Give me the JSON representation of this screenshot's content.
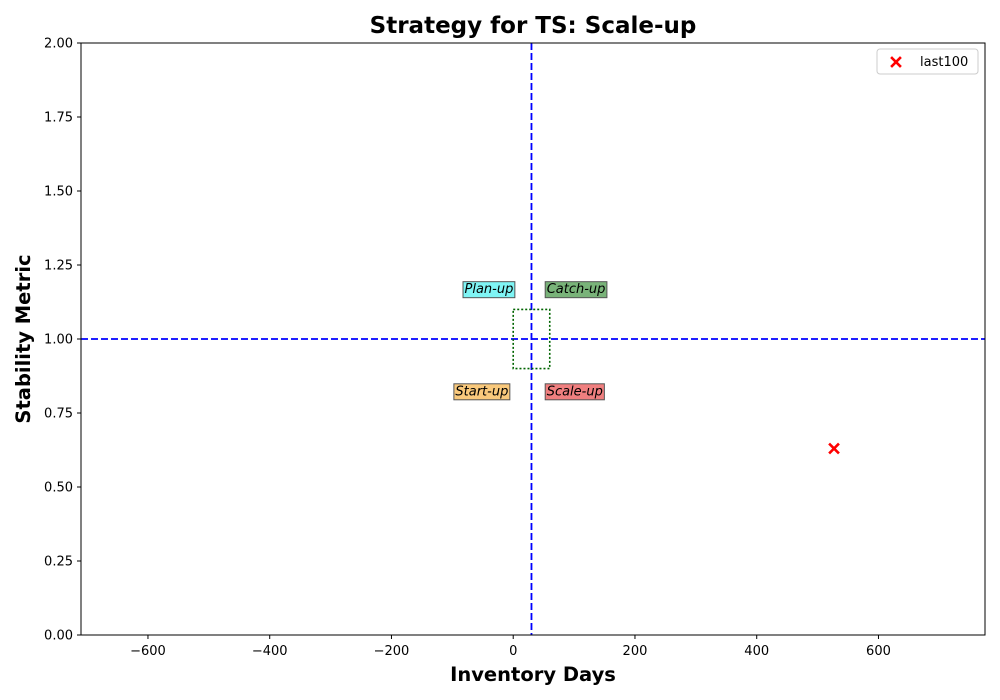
{
  "chart_data": {
    "type": "scatter",
    "title": "Strategy for TS: Scale-up",
    "xlabel": "Inventory Days",
    "ylabel": "Stability Metric",
    "xlim": [
      -710,
      775
    ],
    "ylim": [
      0,
      2
    ],
    "x_ticks": [
      -600,
      -400,
      -200,
      0,
      200,
      400,
      600
    ],
    "x_tick_labels": [
      "−600",
      "−400",
      "−200",
      "0",
      "200",
      "400",
      "600"
    ],
    "y_ticks": [
      0,
      0.25,
      0.5,
      0.75,
      1.0,
      1.25,
      1.5,
      1.75,
      2.0
    ],
    "y_tick_labels": [
      "0.00",
      "0.25",
      "0.50",
      "0.75",
      "1.00",
      "1.25",
      "1.50",
      "1.75",
      "2.00"
    ],
    "grid": false,
    "reference_lines": {
      "vertical_x": 30,
      "horizontal_y": 1.0,
      "color": "#0000ff",
      "style": "dashed"
    },
    "target_box": {
      "x": [
        0,
        60
      ],
      "y": [
        0.9,
        1.1
      ],
      "color": "#006400",
      "style": "dotted"
    },
    "quadrant_labels": [
      {
        "text": "Plan-up",
        "x": -80,
        "y": 1.17,
        "anchor": "start",
        "color": "#7ff5f5"
      },
      {
        "text": "Catch-up",
        "x": 55,
        "y": 1.17,
        "anchor": "start",
        "color": "#79b379"
      },
      {
        "text": "Start-up",
        "x": -95,
        "y": 0.825,
        "anchor": "start",
        "color": "#f9c97c"
      },
      {
        "text": "Scale-up",
        "x": 55,
        "y": 0.825,
        "anchor": "start",
        "color": "#f07f7f"
      }
    ],
    "series": [
      {
        "name": "last100",
        "marker": "x",
        "color": "#ff0000",
        "points": [
          {
            "x": 527,
            "y": 0.63
          }
        ]
      }
    ],
    "legend": {
      "placement": "top-right",
      "entries": [
        "last100"
      ]
    }
  }
}
